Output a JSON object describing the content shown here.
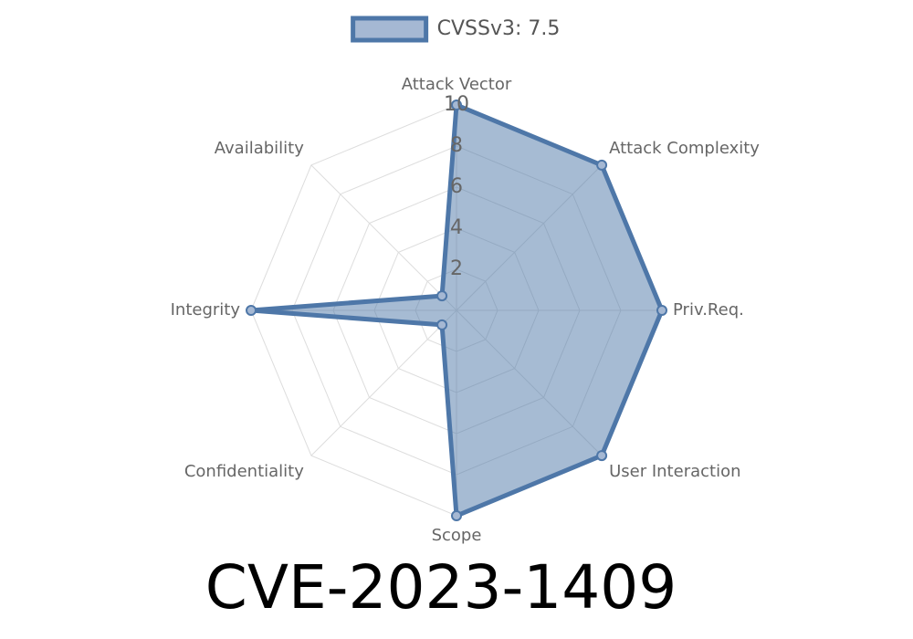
{
  "chart_data": {
    "type": "radar",
    "title": "CVE-2023-1409",
    "categories": [
      "Attack Vector",
      "Attack Complexity",
      "Priv.Req.",
      "User Interaction",
      "Scope",
      "Confidentiality",
      "Integrity",
      "Availability"
    ],
    "series": [
      {
        "name": "CVSSv3: 7.5",
        "color": "#4e77a8",
        "values": [
          10,
          10,
          10,
          10,
          10,
          1,
          10,
          1
        ]
      }
    ],
    "rlim": [
      0,
      10
    ],
    "rticks": [
      2,
      4,
      6,
      8,
      10
    ],
    "grid": true,
    "legend": "top"
  }
}
